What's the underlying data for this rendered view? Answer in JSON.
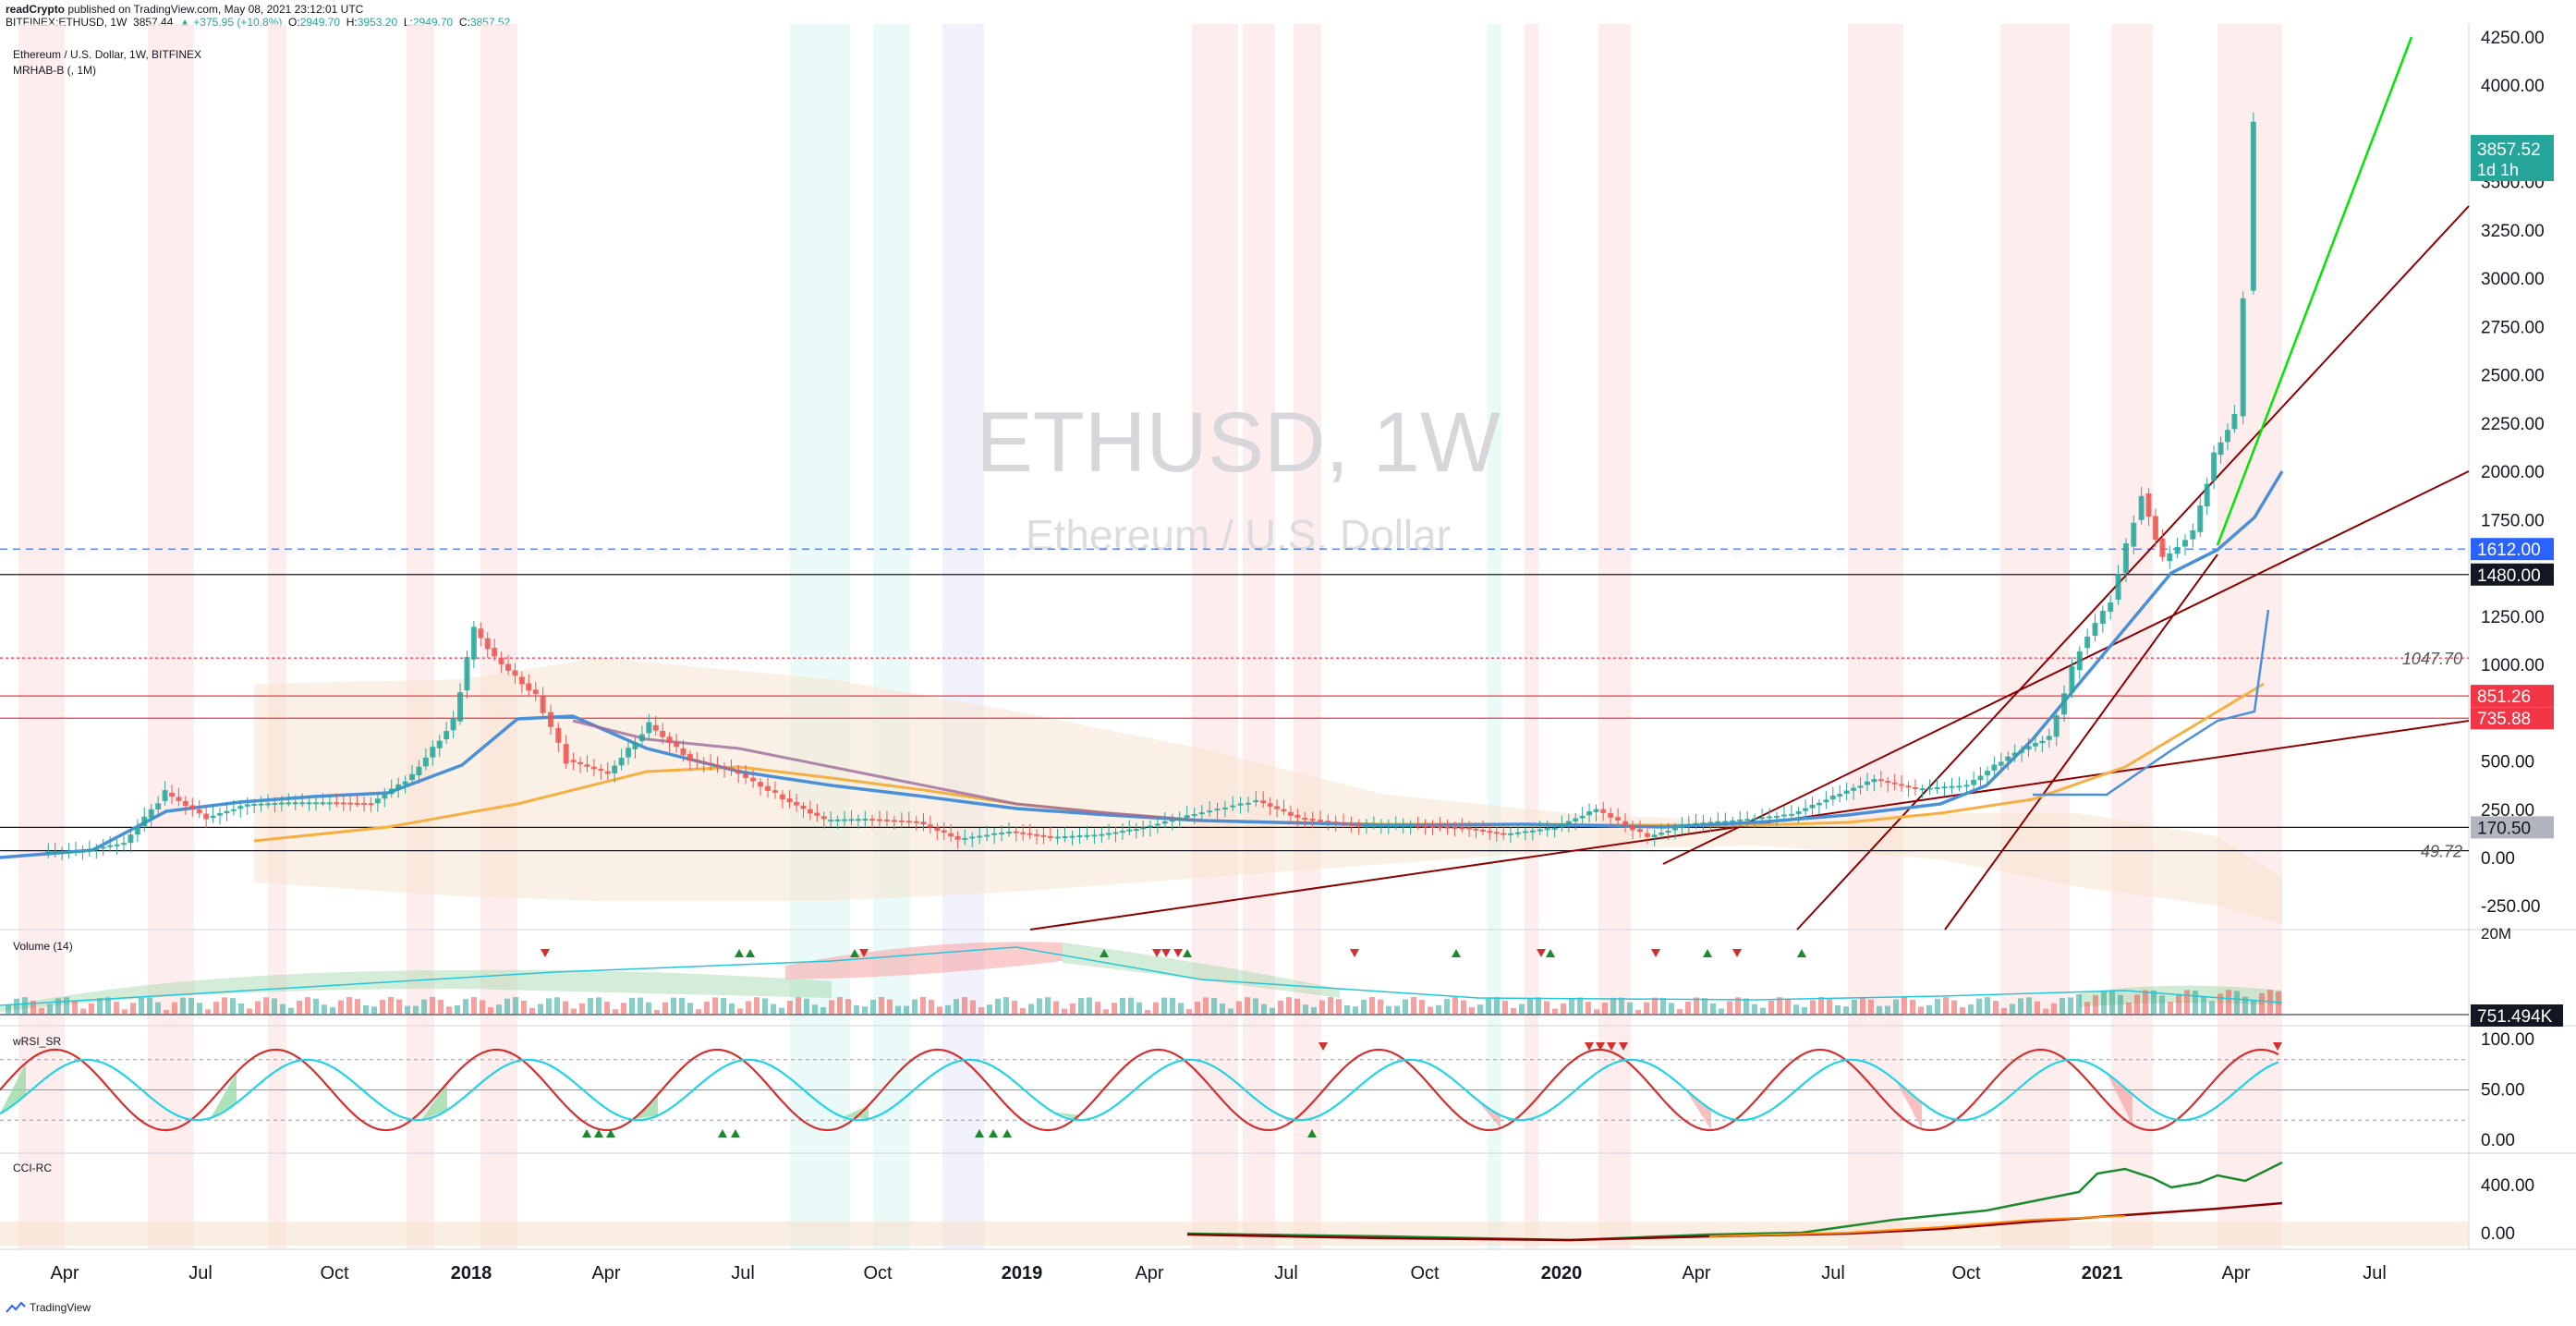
{
  "header": {
    "line1_author": "readCrypto",
    "line1_rest": "published on TradingView.com, May 08, 2021 23:12:01 UTC",
    "symbol": "BITFINEX:ETHUSD, 1W",
    "last": "3857.44",
    "change": "▲ +375.95 (+10.8%)",
    "o_label": "O:",
    "o_val": "2949.70",
    "h_label": "H:",
    "h_val": "3953.20",
    "l_label": "L:",
    "l_val": "2949.70",
    "c_label": "C:",
    "c_val": "3857.52"
  },
  "legend": {
    "title": "Ethereum / U.S. Dollar, 1W, BITFINEX",
    "indicator": "MRHAB-B (, 1M)"
  },
  "watermark": {
    "symbol": "ETHUSD, 1W",
    "name": "Ethereum / U.S. Dollar"
  },
  "panes": {
    "volume": "Volume (14)",
    "rsi": "wRSI_SR",
    "cci": "CCI-RC"
  },
  "footer": {
    "brand": "TradingView"
  },
  "colors": {
    "up": "#26a69a",
    "down": "#ef5350",
    "green_line": "#00e600",
    "trend": "#8b0000",
    "blue": "#4a90d9",
    "orange": "#f5b041",
    "purple": "#9c6a9c",
    "red_level": "#f23645",
    "dark_level": "#131722"
  },
  "chart_data": [
    {
      "type": "candlestick",
      "title": "Ethereum / U.S. Dollar, 1W, BITFINEX",
      "x_ticks": [
        "Apr",
        "Jul",
        "Oct",
        "2018",
        "Apr",
        "Jul",
        "Oct",
        "2019",
        "Apr",
        "Jul",
        "Oct",
        "2020",
        "Apr",
        "Jul",
        "Oct",
        "2021",
        "Apr",
        "Jul"
      ],
      "y_ticks": [
        "4250.00",
        "4000.00",
        "3500.00",
        "3250.00",
        "3000.00",
        "2750.00",
        "2500.00",
        "2250.00",
        "2000.00",
        "1750.00",
        "1250.00",
        "1000.00",
        "500.00",
        "250.00",
        "0.00",
        "-250.00"
      ],
      "ylim": [
        -320,
        4420
      ],
      "price_series": [
        [
          "2017-03-20",
          45
        ],
        [
          "2017-04-17",
          50
        ],
        [
          "2017-05-15",
          90
        ],
        [
          "2017-06-12",
          350
        ],
        [
          "2017-07-10",
          220
        ],
        [
          "2017-08-07",
          290
        ],
        [
          "2017-09-04",
          300
        ],
        [
          "2017-10-02",
          300
        ],
        [
          "2017-10-30",
          295
        ],
        [
          "2017-11-27",
          440
        ],
        [
          "2017-12-25",
          720
        ],
        [
          "2018-01-08",
          1200
        ],
        [
          "2018-01-22",
          1050
        ],
        [
          "2018-02-19",
          850
        ],
        [
          "2018-03-12",
          520
        ],
        [
          "2018-04-09",
          450
        ],
        [
          "2018-05-07",
          700
        ],
        [
          "2018-06-04",
          520
        ],
        [
          "2018-07-02",
          470
        ],
        [
          "2018-08-06",
          320
        ],
        [
          "2018-09-03",
          210
        ],
        [
          "2018-10-01",
          215
        ],
        [
          "2018-11-05",
          200
        ],
        [
          "2018-12-03",
          110
        ],
        [
          "2019-01-07",
          150
        ],
        [
          "2019-02-04",
          120
        ],
        [
          "2019-03-11",
          135
        ],
        [
          "2019-04-08",
          170
        ],
        [
          "2019-05-13",
          240
        ],
        [
          "2019-06-24",
          310
        ],
        [
          "2019-07-22",
          220
        ],
        [
          "2019-09-02",
          180
        ],
        [
          "2019-10-07",
          180
        ],
        [
          "2019-11-11",
          170
        ],
        [
          "2019-12-09",
          135
        ],
        [
          "2020-01-13",
          170
        ],
        [
          "2020-02-10",
          265
        ],
        [
          "2020-03-16",
          120
        ],
        [
          "2020-04-13",
          190
        ],
        [
          "2020-05-18",
          210
        ],
        [
          "2020-06-22",
          240
        ],
        [
          "2020-07-20",
          330
        ],
        [
          "2020-08-17",
          420
        ],
        [
          "2020-09-14",
          370
        ],
        [
          "2020-10-19",
          390
        ],
        [
          "2020-11-16",
          540
        ],
        [
          "2020-12-14",
          640
        ],
        [
          "2021-01-04",
          1100
        ],
        [
          "2021-01-25",
          1350
        ],
        [
          "2021-02-15",
          1900
        ],
        [
          "2021-03-01",
          1550
        ],
        [
          "2021-03-22",
          1700
        ],
        [
          "2021-04-05",
          2100
        ],
        [
          "2021-04-19",
          2300
        ],
        [
          "2021-04-26",
          2950
        ],
        [
          "2021-05-03",
          3857
        ]
      ],
      "price_labels": [
        {
          "value": "3857.52",
          "sub": "1d 1h"
        },
        {
          "value": "1612.00"
        },
        {
          "value": "1480.00"
        },
        {
          "value": "1047.70"
        },
        {
          "value": "851.26"
        },
        {
          "value": "735.88"
        },
        {
          "value": "170.50"
        },
        {
          "value": "49.72"
        }
      ]
    },
    {
      "type": "bar",
      "title": "Volume (14)",
      "y_ticks": [
        "20M"
      ],
      "last_label": "751.494K"
    },
    {
      "type": "line",
      "title": "wRSI_SR",
      "y_ticks": [
        "100.00",
        "50.00",
        "0.00"
      ],
      "ylim": [
        0,
        100
      ]
    },
    {
      "type": "line",
      "title": "CCI-RC",
      "y_ticks": [
        "400.00",
        "0.00"
      ]
    }
  ]
}
